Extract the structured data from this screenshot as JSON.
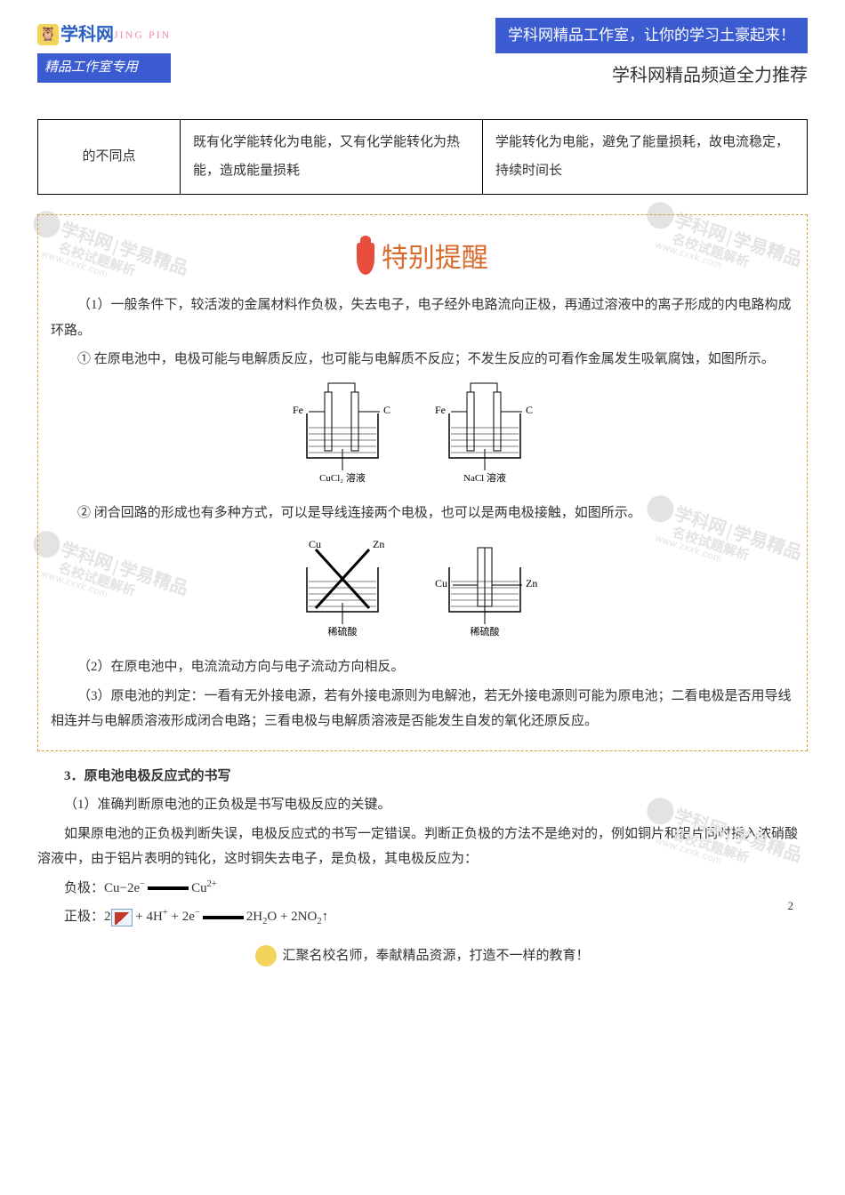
{
  "colors": {
    "banner_bg": "#3b5bd1",
    "badge_bg": "#3b5bd1",
    "logo_blue": "#2b5fc4",
    "logo_sub": "#a83202",
    "logo_icon_bg": "#f3d35c",
    "jingpin": "#f08aa8",
    "callout_border": "#d89b3a",
    "callout_heading": "#d86a2c",
    "wm_gray": "#e3e3e3",
    "wm_owl": "#f3d35c",
    "wm_owl_base": "#6b4a20",
    "footer_owl": "#f3d35c",
    "footer_owl_base": "#6b4a20"
  },
  "header": {
    "logo_text": "学科网",
    "logo_sub": "JING PIN",
    "badge": "精品工作室专用",
    "banner": "学科网精品工作室，让你的学习土豪起来！",
    "banner_sub": "学科网精品频道全力推荐"
  },
  "table": {
    "r1c1": "的不同点",
    "r1c2": "既有化学能转化为电能，又有化学能转化为热能，造成能量损耗",
    "r1c3": "学能转化为电能，避免了能量损耗，故电流稳定，持续时间长"
  },
  "callout": {
    "heading": "特别提醒",
    "p1": "（1）一般条件下，较活泼的金属材料作负极，失去电子，电子经外电路流向正极，再通过溶液中的离子形成的内电路构成环路。",
    "p2": "① 在原电池中，电极可能与电解质反应，也可能与电解质不反应；不发生反应的可看作金属发生吸氧腐蚀，如图所示。",
    "p3": "② 闭合回路的形成也有多种方式，可以是导线连接两个电极，也可以是两电极接触，如图所示。",
    "p4": "（2）在原电池中，电流流动方向与电子流动方向相反。",
    "p5": "（3）原电池的判定：一看有无外接电源，若有外接电源则为电解池，若无外接电源则可能为原电池；二看电极是否用导线相连并与电解质溶液形成闭合电路；三看电极与电解质溶液是否能发生自发的氧化还原反应。"
  },
  "diagram1": {
    "cells": [
      {
        "left_electrode": "Fe",
        "right_electrode": "C",
        "solution": "CuCl₂ 溶液"
      },
      {
        "left_electrode": "Fe",
        "right_electrode": "C",
        "solution": "NaCl 溶液"
      }
    ]
  },
  "diagram2": {
    "cells": [
      {
        "left_electrode": "Cu",
        "right_electrode": "Zn",
        "solution": "稀硫酸",
        "style": "crossed"
      },
      {
        "left_electrode": "Cu",
        "right_electrode": "Zn",
        "solution": "稀硫酸",
        "style": "touching"
      }
    ]
  },
  "section3": {
    "title": "3．原电池电极反应式的书写",
    "p1": "（1）准确判断原电池的正负极是书写电极反应的关键。",
    "p2": "如果原电池的正负极判断失误，电极反应式的书写一定错误。判断正负极的方法不是绝对的，例如铜片和铝片同时插入浓硝酸溶液中，由于铝片表明的钝化，这时铜失去电子，是负极，其电极反应为：",
    "eq_neg_label": "负极：",
    "eq_neg": "Cu−2e⁻ ══ Cu²⁺",
    "eq_pos_label": "正极：",
    "eq_pos_prefix": "2",
    "eq_pos_suffix": " + 4H⁺ + 2e⁻ ══ 2H₂O + 2NO₂↑"
  },
  "watermark": {
    "brand_cn": "学科网",
    "brand_sep": "|",
    "tag1": "学易精品",
    "tag2": "名校试题解析",
    "url": "www.zxxk.com"
  },
  "footer": {
    "text": "汇聚名校名师，奉献精品资源，打造不一样的教育！"
  },
  "page_number": "2"
}
